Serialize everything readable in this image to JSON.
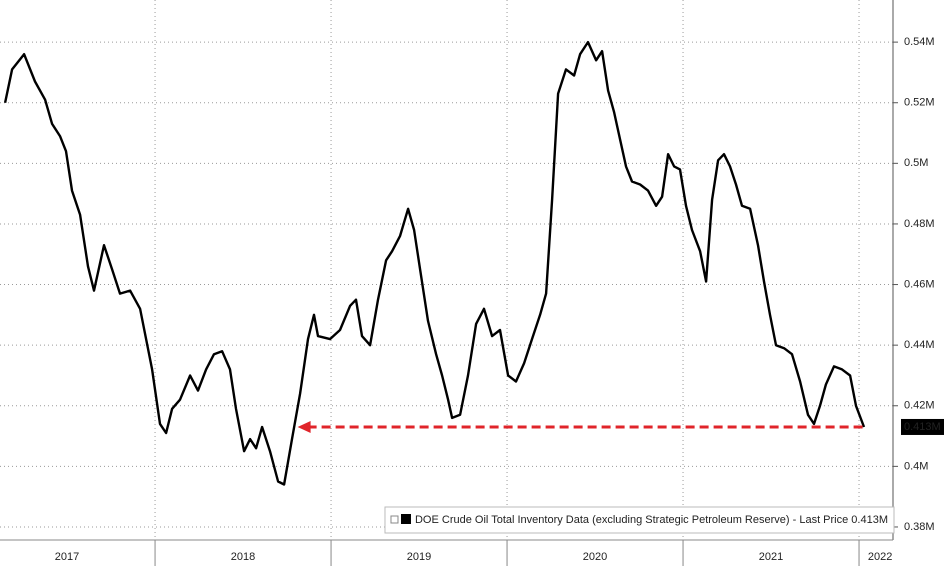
{
  "chart_data": {
    "type": "line",
    "xlim": [
      2017.119,
      2022.193
    ],
    "xticks": [
      {
        "value": 2017.5,
        "label": "2017"
      },
      {
        "value": 2018.5,
        "label": "2018"
      },
      {
        "value": 2019.5,
        "label": "2019"
      },
      {
        "value": 2020.5,
        "label": "2020"
      },
      {
        "value": 2021.5,
        "label": "2021"
      },
      {
        "value": 2022.12,
        "label": "2022"
      }
    ],
    "ylim": [
      0.3757,
      0.5539
    ],
    "yticks": [
      {
        "value": 0.38,
        "label": "0.38M"
      },
      {
        "value": 0.4,
        "label": "0.4M"
      },
      {
        "value": 0.42,
        "label": "0.42M"
      },
      {
        "value": 0.44,
        "label": "0.44M"
      },
      {
        "value": 0.46,
        "label": "0.46M"
      },
      {
        "value": 0.48,
        "label": "0.48M"
      },
      {
        "value": 0.5,
        "label": "0.5M"
      },
      {
        "value": 0.52,
        "label": "0.52M"
      },
      {
        "value": 0.54,
        "label": "0.54M"
      }
    ],
    "grid": true,
    "legend": "bottom-right",
    "series": [
      {
        "name": "DOE Crude Oil Total Inventory Data (excluding Strategic Petroleum Reserve)",
        "color": "#000000",
        "x": [
          2017.148,
          2017.188,
          2017.256,
          2017.318,
          2017.375,
          2017.415,
          2017.46,
          2017.494,
          2017.528,
          2017.574,
          2017.619,
          2017.653,
          2017.71,
          2017.756,
          2017.801,
          2017.858,
          2017.915,
          2017.983,
          2018.028,
          2018.063,
          2018.097,
          2018.142,
          2018.199,
          2018.244,
          2018.29,
          2018.335,
          2018.381,
          2018.426,
          2018.46,
          2018.506,
          2018.54,
          2018.574,
          2018.608,
          2018.653,
          2018.699,
          2018.733,
          2018.778,
          2018.824,
          2018.869,
          2018.903,
          2018.926,
          2018.994,
          2019.051,
          2019.108,
          2019.142,
          2019.176,
          2019.222,
          2019.267,
          2019.313,
          2019.347,
          2019.392,
          2019.438,
          2019.472,
          2019.506,
          2019.551,
          2019.597,
          2019.631,
          2019.665,
          2019.688,
          2019.733,
          2019.778,
          2019.824,
          2019.869,
          2019.915,
          2019.96,
          2020.006,
          2020.051,
          2020.097,
          2020.142,
          2020.188,
          2020.222,
          2020.256,
          2020.29,
          2020.335,
          2020.381,
          2020.415,
          2020.46,
          2020.506,
          2020.54,
          2020.574,
          2020.608,
          2020.642,
          2020.676,
          2020.71,
          2020.756,
          2020.801,
          2020.847,
          2020.881,
          2020.915,
          2020.949,
          2020.983,
          2021.017,
          2021.051,
          2021.097,
          2021.131,
          2021.165,
          2021.199,
          2021.233,
          2021.267,
          2021.301,
          2021.335,
          2021.381,
          2021.426,
          2021.46,
          2021.494,
          2021.528,
          2021.574,
          2021.619,
          2021.665,
          2021.71,
          2021.744,
          2021.778,
          2021.812,
          2021.858,
          2021.903,
          2021.949,
          2021.983,
          2022.028
        ],
        "values": [
          0.52,
          0.531,
          0.536,
          0.527,
          0.521,
          0.513,
          0.509,
          0.504,
          0.491,
          0.483,
          0.466,
          0.458,
          0.473,
          0.465,
          0.457,
          0.458,
          0.452,
          0.432,
          0.414,
          0.411,
          0.419,
          0.422,
          0.43,
          0.425,
          0.432,
          0.437,
          0.438,
          0.432,
          0.419,
          0.405,
          0.409,
          0.406,
          0.413,
          0.405,
          0.395,
          0.394,
          0.409,
          0.424,
          0.442,
          0.45,
          0.443,
          0.442,
          0.445,
          0.453,
          0.455,
          0.443,
          0.44,
          0.455,
          0.468,
          0.471,
          0.476,
          0.485,
          0.478,
          0.465,
          0.448,
          0.437,
          0.43,
          0.422,
          0.416,
          0.417,
          0.43,
          0.447,
          0.452,
          0.443,
          0.445,
          0.43,
          0.428,
          0.434,
          0.442,
          0.45,
          0.457,
          0.488,
          0.523,
          0.531,
          0.529,
          0.536,
          0.54,
          0.534,
          0.537,
          0.524,
          0.517,
          0.508,
          0.499,
          0.494,
          0.493,
          0.491,
          0.486,
          0.489,
          0.503,
          0.499,
          0.498,
          0.486,
          0.478,
          0.471,
          0.461,
          0.488,
          0.501,
          0.503,
          0.499,
          0.493,
          0.486,
          0.485,
          0.473,
          0.461,
          0.45,
          0.44,
          0.439,
          0.437,
          0.428,
          0.417,
          0.414,
          0.42,
          0.427,
          0.433,
          0.432,
          0.43,
          0.42,
          0.413
        ]
      }
    ],
    "last_price_text": "- Last Price",
    "last_value": 0.413,
    "last_value_label": "0.413M",
    "annotations": [
      {
        "type": "arrow",
        "x": [
          2018.81,
          2022.03
        ],
        "y": 0.413,
        "color": "#e0242a"
      }
    ]
  }
}
